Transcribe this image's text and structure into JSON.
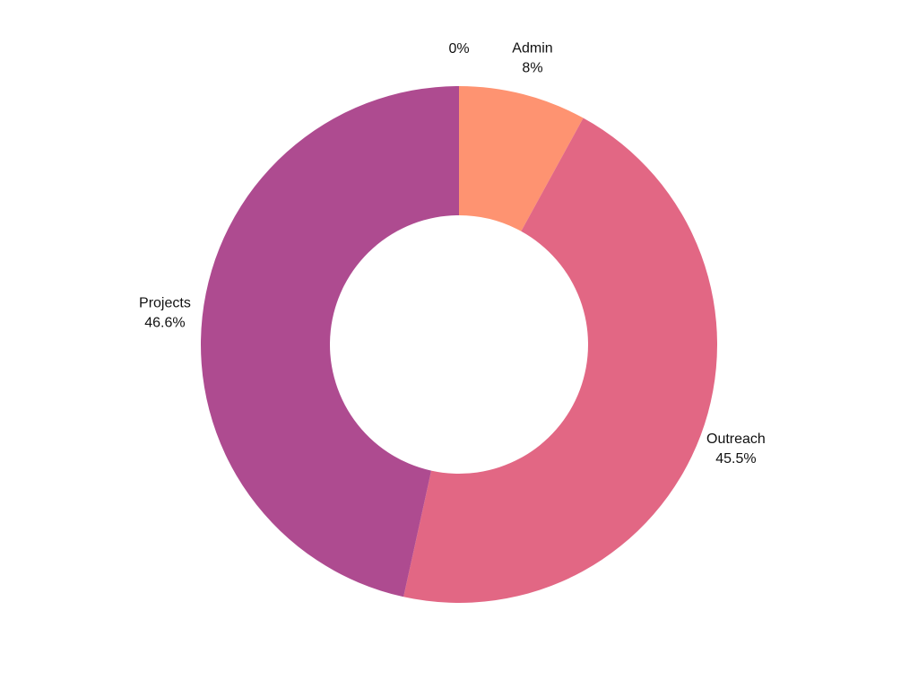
{
  "chart_data": {
    "type": "pie",
    "variant": "donut",
    "categories": [
      "",
      "Admin",
      "Outreach",
      "Projects"
    ],
    "values": [
      0,
      8,
      45.5,
      46.6
    ],
    "value_labels": [
      "0%",
      "8%",
      "45.5%",
      "46.6%"
    ],
    "colors": [
      "#f2c2a0",
      "#fe9371",
      "#e26784",
      "#ae4b90"
    ],
    "start_angle": "12 o'clock",
    "direction": "clockwise",
    "legend": "none"
  }
}
